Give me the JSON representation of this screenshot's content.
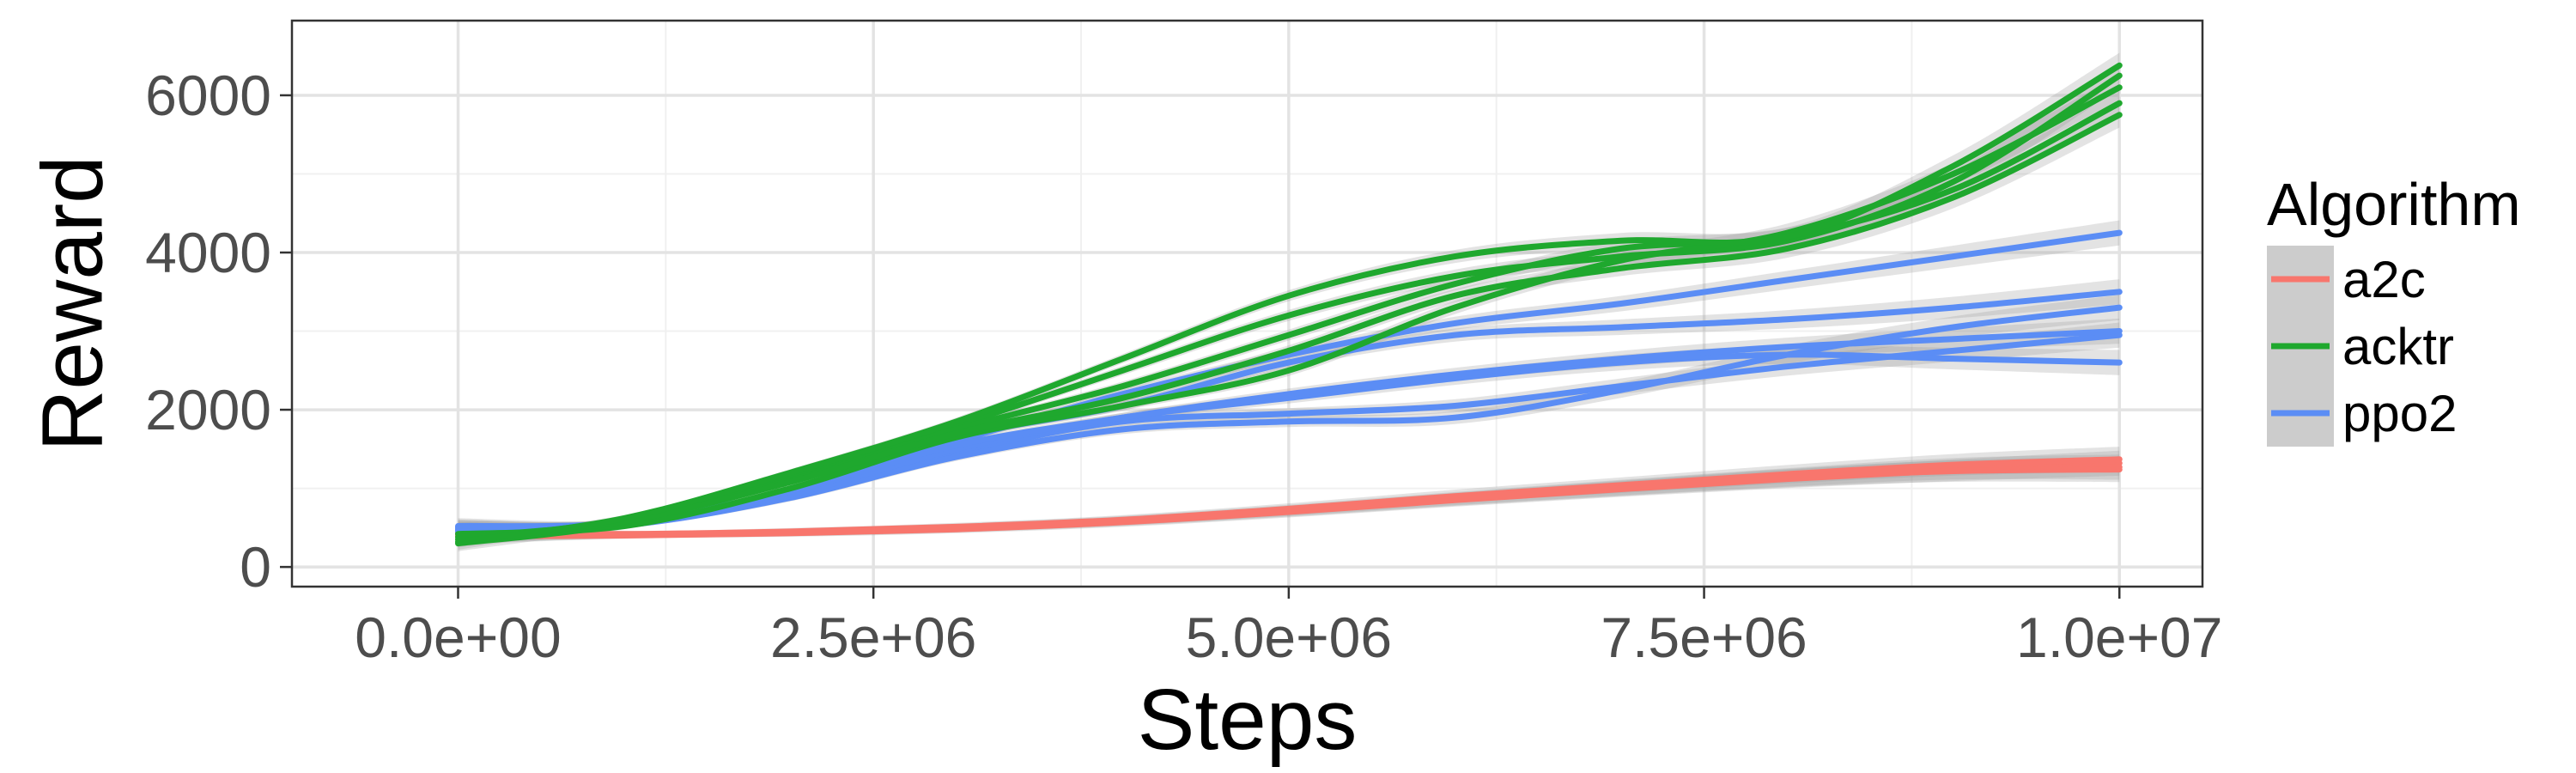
{
  "chart_data": {
    "type": "line",
    "title": "",
    "xlabel": "Steps",
    "ylabel": "Reward",
    "xlim": [
      -1000000,
      10500000
    ],
    "ylim": [
      -250,
      6950
    ],
    "x_ticks": [
      0,
      2500000,
      5000000,
      7500000,
      10000000
    ],
    "x_tick_labels": [
      "0.0e+00",
      "2.5e+06",
      "5.0e+06",
      "7.5e+06",
      "1.0e+07"
    ],
    "y_ticks": [
      0,
      2000,
      4000,
      6000
    ],
    "y_tick_labels": [
      "0",
      "2000",
      "4000",
      "6000"
    ],
    "grid": true,
    "confidence_band": true,
    "legend": {
      "title": "Algorithm",
      "position": "right",
      "items": [
        {
          "label": "a2c",
          "color": "#F8766D"
        },
        {
          "label": "acktr",
          "color": "#1FA82E"
        },
        {
          "label": "ppo2",
          "color": "#5B8DF5"
        }
      ]
    },
    "x": [
      0,
      1000000,
      2000000,
      3000000,
      4000000,
      5000000,
      6000000,
      7000000,
      8000000,
      9000000,
      10000000
    ],
    "series": [
      {
        "algorithm": "a2c",
        "color": "#F8766D",
        "values": [
          390,
          400,
          430,
          480,
          570,
          700,
          850,
          990,
          1120,
          1230,
          1320
        ]
      },
      {
        "algorithm": "a2c",
        "color": "#F8766D",
        "values": [
          420,
          410,
          440,
          500,
          590,
          720,
          870,
          1010,
          1140,
          1250,
          1270
        ]
      },
      {
        "algorithm": "a2c",
        "color": "#F8766D",
        "values": [
          440,
          420,
          450,
          510,
          600,
          740,
          900,
          1040,
          1180,
          1300,
          1370
        ]
      },
      {
        "algorithm": "a2c",
        "color": "#F8766D",
        "values": [
          400,
          405,
          435,
          490,
          580,
          710,
          860,
          1000,
          1130,
          1220,
          1240
        ]
      },
      {
        "algorithm": "acktr",
        "color": "#1FA82E",
        "values": [
          300,
          560,
          1150,
          1800,
          2500,
          3200,
          3700,
          3950,
          4150,
          4900,
          6250
        ]
      },
      {
        "algorithm": "acktr",
        "color": "#1FA82E",
        "values": [
          350,
          600,
          1100,
          1750,
          2300,
          2950,
          3600,
          4050,
          4200,
          4800,
          5900
        ]
      },
      {
        "algorithm": "acktr",
        "color": "#1FA82E",
        "values": [
          420,
          520,
          1000,
          1650,
          2050,
          2500,
          3300,
          3900,
          4250,
          5000,
          6100
        ]
      },
      {
        "algorithm": "acktr",
        "color": "#1FA82E",
        "values": [
          380,
          580,
          1080,
          1700,
          2150,
          2750,
          3450,
          3800,
          4050,
          4700,
          5750
        ]
      },
      {
        "algorithm": "acktr",
        "color": "#1FA82E",
        "values": [
          320,
          620,
          1200,
          1850,
          2650,
          3450,
          3950,
          4150,
          4200,
          5100,
          6380
        ]
      },
      {
        "algorithm": "ppo2",
        "color": "#5B8DF5",
        "values": [
          500,
          550,
          950,
          1600,
          2200,
          2700,
          3100,
          3350,
          3650,
          3950,
          4250
        ]
      },
      {
        "algorithm": "ppo2",
        "color": "#5B8DF5",
        "values": [
          520,
          560,
          900,
          1450,
          1850,
          1950,
          2050,
          2300,
          2550,
          2750,
          2950
        ]
      },
      {
        "algorithm": "ppo2",
        "color": "#5B8DF5",
        "values": [
          470,
          530,
          880,
          1400,
          1750,
          1850,
          1900,
          2250,
          2700,
          3050,
          3300
        ]
      },
      {
        "algorithm": "ppo2",
        "color": "#5B8DF5",
        "values": [
          450,
          540,
          920,
          1500,
          1900,
          2150,
          2400,
          2600,
          2700,
          2650,
          2600
        ]
      },
      {
        "algorithm": "ppo2",
        "color": "#5B8DF5",
        "values": [
          480,
          570,
          980,
          1650,
          2050,
          2600,
          2950,
          3050,
          3150,
          3300,
          3500
        ]
      },
      {
        "algorithm": "ppo2",
        "color": "#5B8DF5",
        "values": [
          500,
          560,
          960,
          1550,
          1900,
          2200,
          2450,
          2650,
          2800,
          2900,
          3000
        ]
      }
    ]
  }
}
